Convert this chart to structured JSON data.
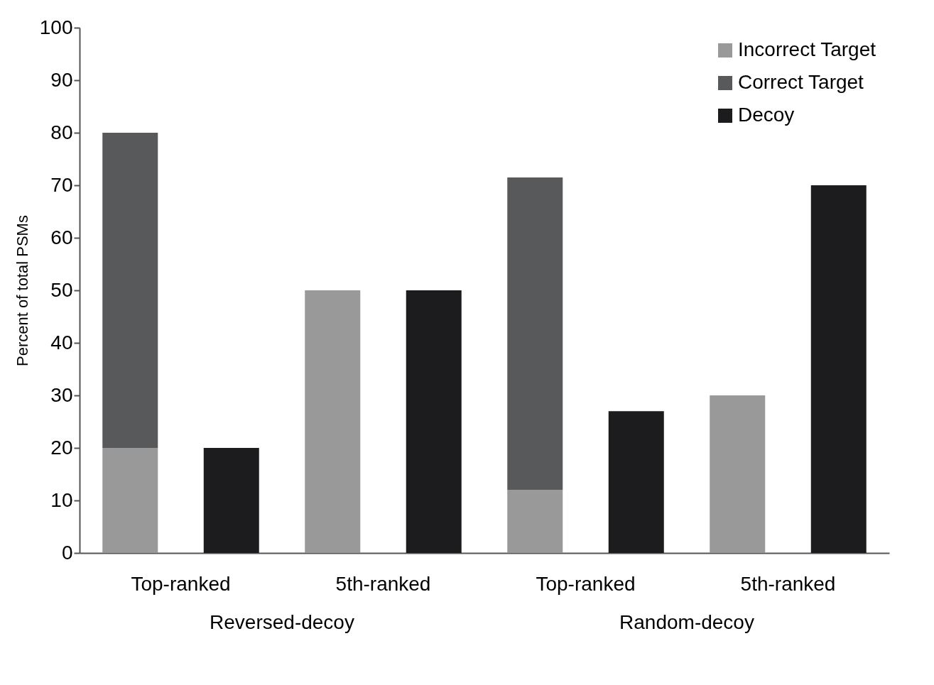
{
  "chart_data": {
    "type": "bar",
    "ylabel": "Percent of total PSMs",
    "categories": [
      "Top-ranked",
      null,
      "5th-ranked",
      null,
      "Top-ranked",
      null,
      "5th-ranked",
      null
    ],
    "stacked": true,
    "series": [
      {
        "name": "Incorrect Target",
        "color": "#999999",
        "values": [
          20,
          null,
          50,
          null,
          12,
          null,
          30,
          null
        ]
      },
      {
        "name": "Correct Target",
        "color": "#58595b",
        "values": [
          60,
          null,
          null,
          null,
          59.5,
          null,
          null,
          null
        ]
      },
      {
        "name": "Decoy",
        "color": "#1c1c1e",
        "values": [
          null,
          20,
          null,
          50,
          null,
          27,
          null,
          70
        ]
      }
    ],
    "ylim": [
      0,
      100
    ],
    "yticks": [
      0,
      10,
      20,
      30,
      40,
      50,
      60,
      70,
      80,
      90,
      100
    ],
    "grid": false,
    "legend": "top right",
    "annotations": [
      "Reversed-decoy",
      "Random-decoy"
    ]
  }
}
